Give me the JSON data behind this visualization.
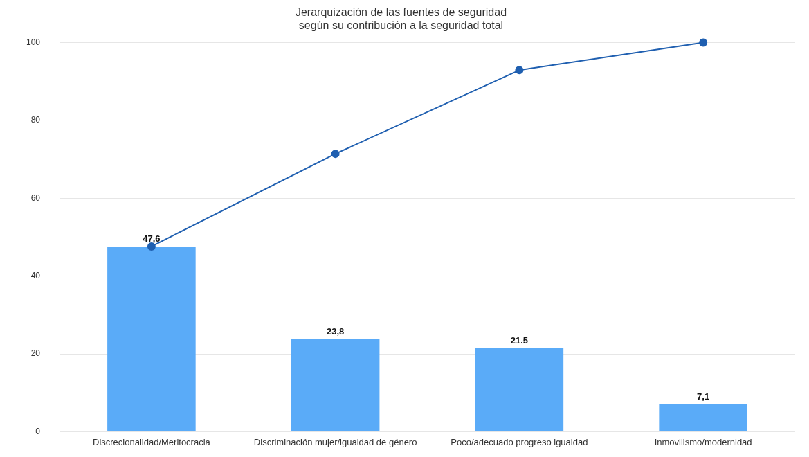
{
  "chart_data": {
    "type": "bar",
    "title": "Jerarquización de las fuentes de seguridad\nsegún su contribución a la seguridad total",
    "categories": [
      "Discrecionalidad/Meritocracia",
      "Discriminación mujer/igualdad de género",
      "Poco/adecuado progreso igualdad",
      "Inmovilismo/modernidad"
    ],
    "series": [
      {
        "color": "#5aabf8",
        "values": [
          47.6,
          23.8,
          21.5,
          7.1
        ],
        "value_labels": [
          "47,6",
          "23,8",
          "21.5",
          "7,1"
        ]
      },
      {
        "type": "line",
        "color": "#1f5fb0",
        "values": [
          47.6,
          71.4,
          92.9,
          100
        ]
      }
    ],
    "ylim": [
      0,
      100
    ],
    "yticks": [
      0,
      20,
      40,
      60,
      80,
      100
    ],
    "grid": "y",
    "marker": "circle",
    "line_style": "solid"
  }
}
